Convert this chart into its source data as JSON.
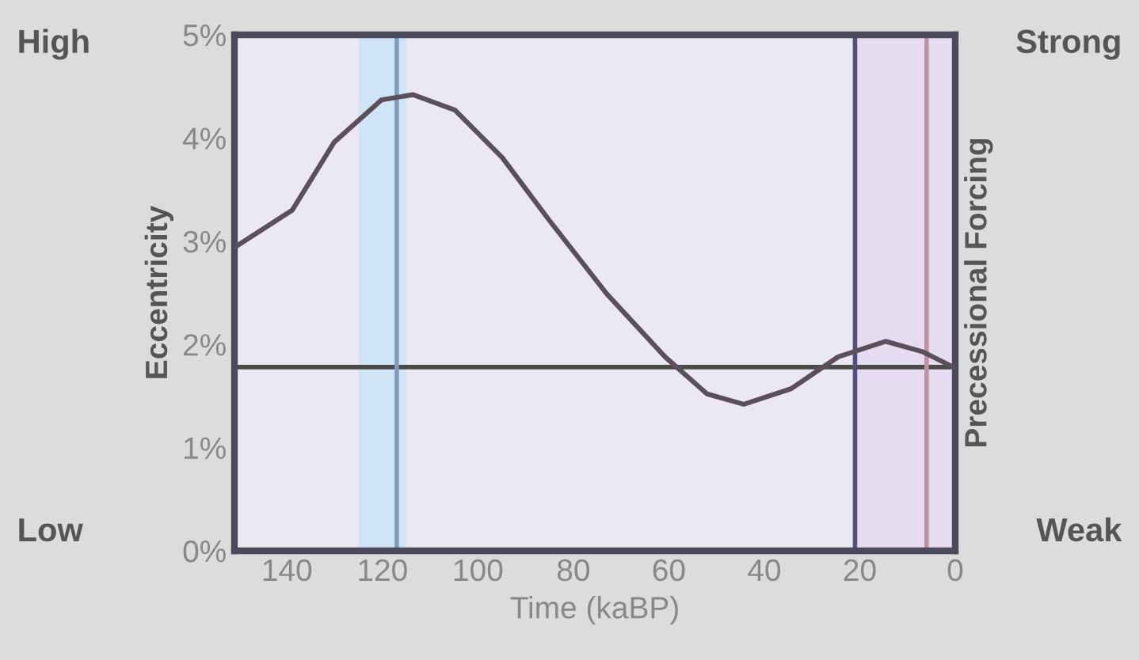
{
  "chart_data": {
    "type": "line",
    "xlabel": "Time (kaBP)",
    "ylabel": "Eccentricity",
    "y2label": "Precessional Forcing",
    "x": [
      151,
      138.9,
      130.1,
      120.2,
      113.6,
      104.8,
      94.9,
      85,
      73,
      60.8,
      52,
      44.3,
      34.4,
      24.5,
      14.6,
      6.9,
      0.4
    ],
    "series": [
      {
        "color": "#5a4f5a",
        "values": [
          2.94,
          3.3,
          3.96,
          4.37,
          4.42,
          4.27,
          3.81,
          3.2,
          2.49,
          1.88,
          1.52,
          1.42,
          1.57,
          1.88,
          2.03,
          1.93,
          1.78
        ]
      }
    ],
    "xlim": [
      151,
      0
    ],
    "xticks": [
      140,
      120,
      100,
      80,
      60,
      40,
      20,
      0
    ],
    "ylim": [
      0,
      5
    ],
    "yticks": [
      {
        "value": 0,
        "label": "0%"
      },
      {
        "value": 1,
        "label": "1%"
      },
      {
        "value": 2,
        "label": "2%"
      },
      {
        "value": 3,
        "label": "3%"
      },
      {
        "value": 4,
        "label": "4%"
      },
      {
        "value": 5,
        "label": "5%"
      }
    ],
    "ref_lines": [
      {
        "axis": "y",
        "value": 1.78,
        "color": "#4a4a4a"
      },
      {
        "axis": "x",
        "value": 117,
        "color": "#7f9cc0"
      },
      {
        "axis": "x",
        "value": 21,
        "color": "#50507a"
      },
      {
        "axis": "x",
        "value": 6,
        "color": "#c090a0"
      }
    ],
    "bands": [
      {
        "axis": "x",
        "from": 125,
        "to": 115,
        "color": "#cfe4f4"
      },
      {
        "axis": "x",
        "from": 21,
        "to": 0,
        "color": "#e6dcf0"
      }
    ],
    "annotations": [
      "High",
      "Low",
      "Strong",
      "Weak"
    ],
    "grid": false,
    "legend": false,
    "line_style": "solid",
    "marker": "none"
  }
}
